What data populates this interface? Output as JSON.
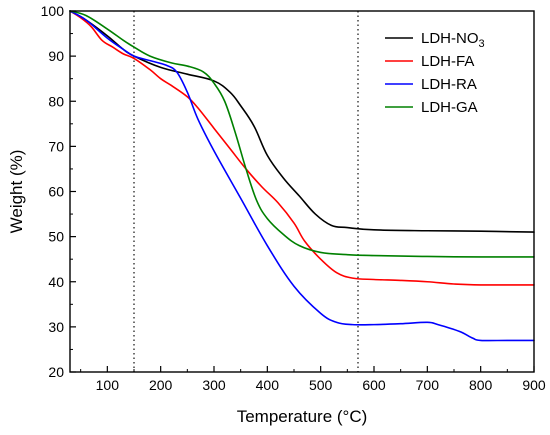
{
  "chart_data": {
    "type": "line",
    "title": "",
    "xlabel": "Temperature (°C)",
    "ylabel": "Weight (%)",
    "xlim": [
      30,
      900
    ],
    "ylim": [
      20,
      100
    ],
    "x_ticks": [
      100,
      200,
      300,
      400,
      500,
      600,
      700,
      800,
      900
    ],
    "y_ticks": [
      20,
      30,
      40,
      50,
      60,
      70,
      80,
      90,
      100
    ],
    "x_tick_labels": [
      "100",
      "200",
      "300",
      "400",
      "500",
      "600",
      "700",
      "800",
      "900"
    ],
    "y_tick_labels": [
      "20",
      "30",
      "40",
      "50",
      "60",
      "70",
      "80",
      "90",
      "100"
    ],
    "grid": false,
    "legend_position": "top-right",
    "reference_lines_x": [
      150,
      570
    ],
    "series": [
      {
        "name": "LDH-NO",
        "name_subscript": "3",
        "color": "#000000",
        "x": [
          30,
          60,
          100,
          130,
          150,
          200,
          250,
          300,
          330,
          350,
          375,
          400,
          430,
          460,
          490,
          520,
          550,
          600,
          700,
          800,
          900
        ],
        "y": [
          100,
          98,
          94.5,
          91.5,
          90,
          87.5,
          86,
          84.5,
          82,
          79,
          74.5,
          68,
          63,
          59,
          55,
          52.5,
          52,
          51.5,
          51.3,
          51.2,
          51
        ]
      },
      {
        "name": "LDH-FA",
        "color": "#ff0000",
        "x": [
          30,
          50,
          70,
          90,
          110,
          130,
          150,
          180,
          200,
          220,
          250,
          270,
          300,
          330,
          360,
          390,
          420,
          450,
          470,
          500,
          530,
          560,
          600,
          650,
          700,
          750,
          800,
          900
        ],
        "y": [
          100,
          98.5,
          96.5,
          93.5,
          92,
          90.5,
          89.5,
          87,
          85,
          83.5,
          81,
          78.5,
          74,
          69.5,
          65,
          61,
          57.5,
          53,
          49,
          45,
          42,
          40.8,
          40.5,
          40.3,
          40,
          39.5,
          39.3,
          39.3
        ]
      },
      {
        "name": "LDH-RA",
        "color": "#0000ff",
        "x": [
          30,
          60,
          100,
          130,
          150,
          180,
          210,
          230,
          250,
          270,
          300,
          350,
          400,
          450,
          500,
          530,
          560,
          600,
          650,
          700,
          720,
          760,
          785,
          800,
          850,
          900
        ],
        "y": [
          100,
          98,
          94,
          91.5,
          90,
          89,
          88,
          86.5,
          82,
          76,
          69,
          58.5,
          48,
          39,
          33,
          31,
          30.5,
          30.5,
          30.7,
          31,
          30.5,
          29,
          27.5,
          27,
          27,
          27
        ]
      },
      {
        "name": "LDH-GA",
        "color": "#008000",
        "x": [
          30,
          60,
          100,
          130,
          150,
          180,
          220,
          250,
          280,
          300,
          320,
          340,
          360,
          380,
          400,
          430,
          460,
          500,
          550,
          600,
          700,
          800,
          900
        ],
        "y": [
          100,
          99,
          96,
          93.5,
          92,
          90,
          88.5,
          87.8,
          86.5,
          84,
          80,
          73,
          65,
          58,
          54,
          50.5,
          48,
          46.5,
          46,
          45.8,
          45.6,
          45.5,
          45.5
        ]
      }
    ]
  }
}
